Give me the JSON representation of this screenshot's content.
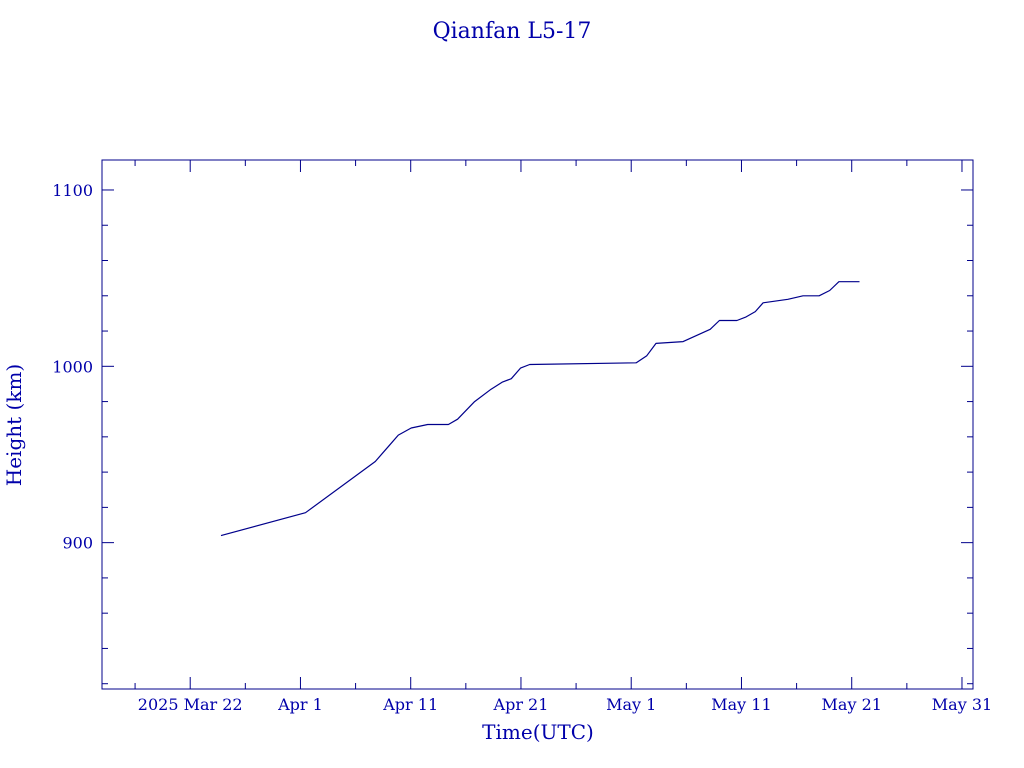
{
  "colors": {
    "ink": "#00008b",
    "background": "#ffffff"
  },
  "chart_data": {
    "type": "line",
    "title": "Qianfan L5-17",
    "xlabel": "Time(UTC)",
    "ylabel": "Height (km)",
    "x_type": "date",
    "xlim": [
      "2025-03-14",
      "2025-06-01"
    ],
    "ylim": [
      817,
      1117
    ],
    "grid": false,
    "x_ticks": [
      {
        "date": "2025-03-22",
        "label": "2025 Mar 22"
      },
      {
        "date": "2025-04-01",
        "label": "Apr  1"
      },
      {
        "date": "2025-04-11",
        "label": "Apr 11"
      },
      {
        "date": "2025-04-21",
        "label": "Apr 21"
      },
      {
        "date": "2025-05-01",
        "label": "May  1"
      },
      {
        "date": "2025-05-11",
        "label": "May 11"
      },
      {
        "date": "2025-05-21",
        "label": "May 21"
      },
      {
        "date": "2025-05-31",
        "label": "May 31"
      }
    ],
    "y_ticks": [
      {
        "value": 900,
        "label": "900"
      },
      {
        "value": 1000,
        "label": "1000"
      },
      {
        "value": 1100,
        "label": "1100"
      }
    ],
    "series": [
      {
        "points": [
          [
            "2025-03-24 19:00",
            904
          ],
          [
            "2025-04-01 11:00",
            917
          ],
          [
            "2025-04-07 19:00",
            946
          ],
          [
            "2025-04-09 01:00",
            955
          ],
          [
            "2025-04-09 21:00",
            961
          ],
          [
            "2025-04-11 01:00",
            965
          ],
          [
            "2025-04-12 13:00",
            967
          ],
          [
            "2025-04-14 10:00",
            967
          ],
          [
            "2025-04-15 06:00",
            970
          ],
          [
            "2025-04-16 19:00",
            980
          ],
          [
            "2025-04-18 07:00",
            987
          ],
          [
            "2025-04-19 07:00",
            991
          ],
          [
            "2025-04-20 03:00",
            993
          ],
          [
            "2025-04-20 23:00",
            999
          ],
          [
            "2025-04-21 19:00",
            1001
          ],
          [
            "2025-05-01 11:00",
            1002
          ],
          [
            "2025-05-02 10:00",
            1006
          ],
          [
            "2025-05-03 06:00",
            1013
          ],
          [
            "2025-05-05 17:00",
            1014
          ],
          [
            "2025-05-08 04:00",
            1021
          ],
          [
            "2025-05-09 00:00",
            1026
          ],
          [
            "2025-05-10 14:00",
            1026
          ],
          [
            "2025-05-11 10:00",
            1028
          ],
          [
            "2025-05-12 06:00",
            1031
          ],
          [
            "2025-05-12 23:00",
            1036
          ],
          [
            "2025-05-15 05:00",
            1038
          ],
          [
            "2025-05-16 14:00",
            1040
          ],
          [
            "2025-05-18 01:00",
            1040
          ],
          [
            "2025-05-19 00:00",
            1043
          ],
          [
            "2025-05-19 20:00",
            1048
          ],
          [
            "2025-05-21 17:00",
            1048
          ]
        ]
      }
    ]
  }
}
